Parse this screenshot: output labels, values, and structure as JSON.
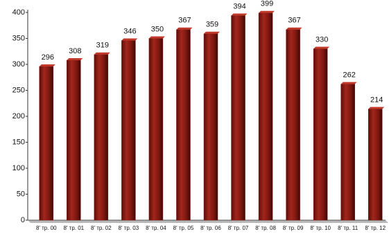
{
  "chart_data": {
    "type": "bar",
    "categories": [
      "8' тр. 00",
      "8' тр. 01",
      "8' тр. 02",
      "8' тр. 03",
      "8' тр. 04",
      "8' тр. 05",
      "8' тр. 06",
      "8' тр. 07",
      "8' тр. 08",
      "8' тр. 09",
      "8' тр. 10",
      "8' тр. 11",
      "8' тр. 12"
    ],
    "values": [
      296,
      308,
      319,
      346,
      350,
      367,
      359,
      394,
      399,
      367,
      330,
      262,
      214
    ],
    "color": "#8b1a14",
    "ylim": [
      0,
      400
    ],
    "yticks": [
      0,
      50,
      100,
      150,
      200,
      250,
      300,
      350,
      400
    ],
    "grid": false
  }
}
